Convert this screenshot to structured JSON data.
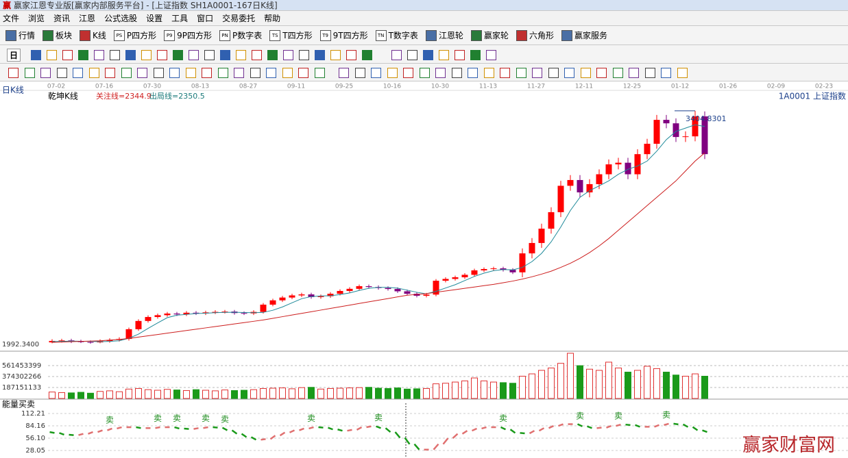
{
  "window": {
    "logo": "赢",
    "title": "赢家江恩专业版[赢家内部服务平台] - [上证指数 SH1A0001-167日K线]",
    "menu": [
      "文件",
      "浏览",
      "资讯",
      "江恩",
      "公式选股",
      "设置",
      "工具",
      "窗口",
      "交易委托",
      "帮助"
    ],
    "toolbar": [
      {
        "label": "行情"
      },
      {
        "label": "板块"
      },
      {
        "label": "K线"
      },
      {
        "icon": "PS",
        "label": "P四方形"
      },
      {
        "icon": "P9",
        "label": "9P四方形"
      },
      {
        "icon": "PN",
        "label": "P数字表"
      },
      {
        "icon": "TS",
        "label": "T四方形"
      },
      {
        "icon": "T9",
        "label": "9T四方形"
      },
      {
        "icon": "TN",
        "label": "T数字表"
      },
      {
        "label": "江恩轮"
      },
      {
        "label": "赢家轮"
      },
      {
        "label": "六角形"
      },
      {
        "label": "赢家服务"
      }
    ],
    "period": "日",
    "watermark": "赢家财富网"
  },
  "chart_data": [
    {
      "type": "candlestick",
      "period_label": "日K线",
      "title": "乾坤K线",
      "markers": [
        "关注线=2344.9",
        "出局线=2350.5"
      ],
      "symbol": "1A0001 上证指数",
      "dates": [
        "07-02",
        "07-16",
        "07-30",
        "08-13",
        "08-27",
        "09-11",
        "09-25",
        "10-16",
        "10-30",
        "11-13",
        "11-27",
        "12-11",
        "12-25",
        "01-12",
        "01-26",
        "02-09",
        "02-23"
      ],
      "open": [
        2000,
        2009,
        2012,
        2006,
        2002,
        2000,
        2008,
        2015,
        2021,
        2080,
        2130,
        2154,
        2165,
        2175,
        2170,
        2180,
        2176,
        2182,
        2185,
        2187,
        2178,
        2176,
        2185,
        2229,
        2255,
        2272,
        2285,
        2291,
        2275,
        2280,
        2295,
        2312,
        2325,
        2341,
        2336,
        2330,
        2324,
        2310,
        2295,
        2283,
        2290,
        2374,
        2385,
        2395,
        2410,
        2437,
        2445,
        2449,
        2440,
        2425,
        2540,
        2603,
        2690,
        2790,
        2950,
        2985,
        2910,
        2960,
        3020,
        3080,
        3090,
        3020,
        3142,
        3205,
        3350,
        3329,
        3246,
        3250,
        3371
      ],
      "close": [
        2009,
        2012,
        2006,
        2002,
        2000,
        2008,
        2015,
        2021,
        2080,
        2130,
        2154,
        2165,
        2175,
        2170,
        2180,
        2176,
        2182,
        2185,
        2187,
        2178,
        2176,
        2185,
        2229,
        2255,
        2272,
        2285,
        2291,
        2275,
        2280,
        2295,
        2312,
        2325,
        2341,
        2336,
        2330,
        2324,
        2310,
        2295,
        2283,
        2290,
        2374,
        2385,
        2395,
        2410,
        2437,
        2445,
        2449,
        2440,
        2425,
        2540,
        2603,
        2690,
        2790,
        2950,
        2985,
        2910,
        2960,
        3020,
        3080,
        3090,
        3020,
        3142,
        3205,
        3350,
        3329,
        3246,
        3250,
        3371,
        3142
      ],
      "high": [
        2019,
        2022,
        2022,
        2016,
        2012,
        2018,
        2025,
        2031,
        2090,
        2140,
        2164,
        2175,
        2185,
        2185,
        2190,
        2190,
        2192,
        2195,
        2197,
        2197,
        2188,
        2195,
        2239,
        2265,
        2282,
        2295,
        2301,
        2301,
        2290,
        2305,
        2322,
        2335,
        2351,
        2351,
        2346,
        2340,
        2334,
        2320,
        2305,
        2300,
        2384,
        2395,
        2405,
        2420,
        2447,
        2455,
        2459,
        2459,
        2450,
        2570,
        2633,
        2720,
        2820,
        2980,
        3015,
        3015,
        2990,
        3050,
        3110,
        3120,
        3120,
        3172,
        3235,
        3380,
        3380,
        3359,
        3280,
        3404.8301,
        3401
      ],
      "low": [
        1995,
        1999,
        1996,
        1996,
        1992.34,
        1995,
        1998,
        2005,
        2011,
        2070,
        2120,
        2144,
        2155,
        2160,
        2160,
        2166,
        2166,
        2172,
        2175,
        2168,
        2166,
        2166,
        2175,
        2219,
        2245,
        2262,
        2275,
        2265,
        2265,
        2270,
        2285,
        2302,
        2315,
        2326,
        2320,
        2314,
        2300,
        2285,
        2273,
        2273,
        2280,
        2364,
        2375,
        2385,
        2400,
        2427,
        2435,
        2430,
        2415,
        2395,
        2510,
        2573,
        2660,
        2760,
        2920,
        2880,
        2880,
        2930,
        2990,
        3050,
        2990,
        2990,
        3112,
        3175,
        3299,
        3216,
        3216,
        3220,
        3112
      ],
      "up_color": "#ff0000",
      "down_color": "#800080",
      "ma": [
        {
          "color": "#1f8a9a",
          "values": [
            2005,
            2006,
            2008,
            2007,
            2006,
            2004,
            2006,
            2010,
            2025,
            2050,
            2085,
            2118,
            2150,
            2165,
            2170,
            2175,
            2177,
            2180,
            2182,
            2183,
            2181,
            2180,
            2182,
            2195,
            2215,
            2240,
            2265,
            2278,
            2282,
            2283,
            2290,
            2300,
            2315,
            2328,
            2334,
            2334,
            2329,
            2317,
            2304,
            2295,
            2310,
            2330,
            2350,
            2375,
            2400,
            2420,
            2435,
            2442,
            2440,
            2455,
            2490,
            2540,
            2610,
            2700,
            2800,
            2880,
            2920,
            2950,
            2980,
            3020,
            3050,
            3070,
            3100,
            3160,
            3230,
            3280,
            3300,
            3320,
            3310
          ]
        },
        {
          "color": "#cc1b1b",
          "values": [
            2000,
            2002,
            2004,
            2006,
            2008,
            2010,
            2014,
            2018,
            2024,
            2032,
            2040,
            2048,
            2056,
            2064,
            2072,
            2080,
            2088,
            2096,
            2104,
            2112,
            2120,
            2128,
            2136,
            2146,
            2156,
            2166,
            2176,
            2186,
            2196,
            2206,
            2216,
            2226,
            2236,
            2246,
            2256,
            2266,
            2276,
            2286,
            2291,
            2296,
            2304,
            2312,
            2320,
            2328,
            2336,
            2344,
            2352,
            2362,
            2372,
            2384,
            2398,
            2414,
            2432,
            2455,
            2480,
            2510,
            2545,
            2585,
            2630,
            2680,
            2730,
            2780,
            2830,
            2880,
            2930,
            2980,
            3040,
            3100,
            3150
          ]
        }
      ],
      "ylim": [
        1959,
        3558
      ],
      "high_label": "3404.8301",
      "low_label": "1992.3400"
    },
    {
      "type": "bar",
      "values": [
        110000000,
        100000000,
        95000000,
        105000000,
        90000000,
        120000000,
        130000000,
        115000000,
        160000000,
        170000000,
        150000000,
        140000000,
        155000000,
        145000000,
        135000000,
        150000000,
        140000000,
        130000000,
        145000000,
        135000000,
        140000000,
        150000000,
        170000000,
        175000000,
        180000000,
        165000000,
        185000000,
        190000000,
        160000000,
        170000000,
        175000000,
        180000000,
        185000000,
        190000000,
        175000000,
        170000000,
        180000000,
        160000000,
        165000000,
        170000000,
        250000000,
        260000000,
        280000000,
        300000000,
        350000000,
        300000000,
        280000000,
        270000000,
        260000000,
        380000000,
        420000000,
        480000000,
        520000000,
        600000000,
        772000000,
        560000000,
        500000000,
        480000000,
        620000000,
        520000000,
        450000000,
        480000000,
        550000000,
        510000000,
        450000000,
        400000000,
        380000000,
        420000000,
        380000000
      ],
      "ylim": [
        0,
        807000000
      ],
      "yticks": [
        187151133,
        374302266,
        561453399
      ],
      "up_color": "#e03030",
      "down_color": "#1a9a1a"
    },
    {
      "type": "line",
      "title": "能量买卖",
      "values": [
        70,
        66,
        62,
        64,
        68,
        72,
        76,
        80,
        82,
        80,
        78,
        80,
        82,
        80,
        76,
        78,
        80,
        82,
        78,
        70,
        62,
        55,
        50,
        58,
        66,
        72,
        76,
        80,
        82,
        78,
        74,
        72,
        78,
        84,
        82,
        76,
        64,
        50,
        35,
        25,
        35,
        50,
        62,
        70,
        76,
        80,
        82,
        80,
        72,
        64,
        70,
        76,
        82,
        86,
        90,
        86,
        80,
        78,
        82,
        86,
        88,
        84,
        80,
        84,
        88,
        90,
        85,
        78,
        70
      ],
      "ylim": [
        0,
        132.5
      ],
      "yticks": [
        112.21,
        84.16,
        {
          "value": 56.1,
          "label": "56.10"
        },
        28.05
      ],
      "up_color": "#e07070",
      "down_color": "#1a9a1a",
      "signals": [
        {
          "index": 6,
          "label": "卖"
        },
        {
          "index": 11,
          "label": "卖"
        },
        {
          "index": 13,
          "label": "卖"
        },
        {
          "index": 16,
          "label": "卖"
        },
        {
          "index": 18,
          "label": "卖"
        },
        {
          "index": 27,
          "label": "卖"
        },
        {
          "index": 34,
          "label": "卖"
        },
        {
          "index": 47,
          "label": "卖"
        },
        {
          "index": 55,
          "label": "卖"
        },
        {
          "index": 59,
          "label": "卖"
        },
        {
          "index": 64,
          "label": "卖"
        }
      ]
    }
  ]
}
